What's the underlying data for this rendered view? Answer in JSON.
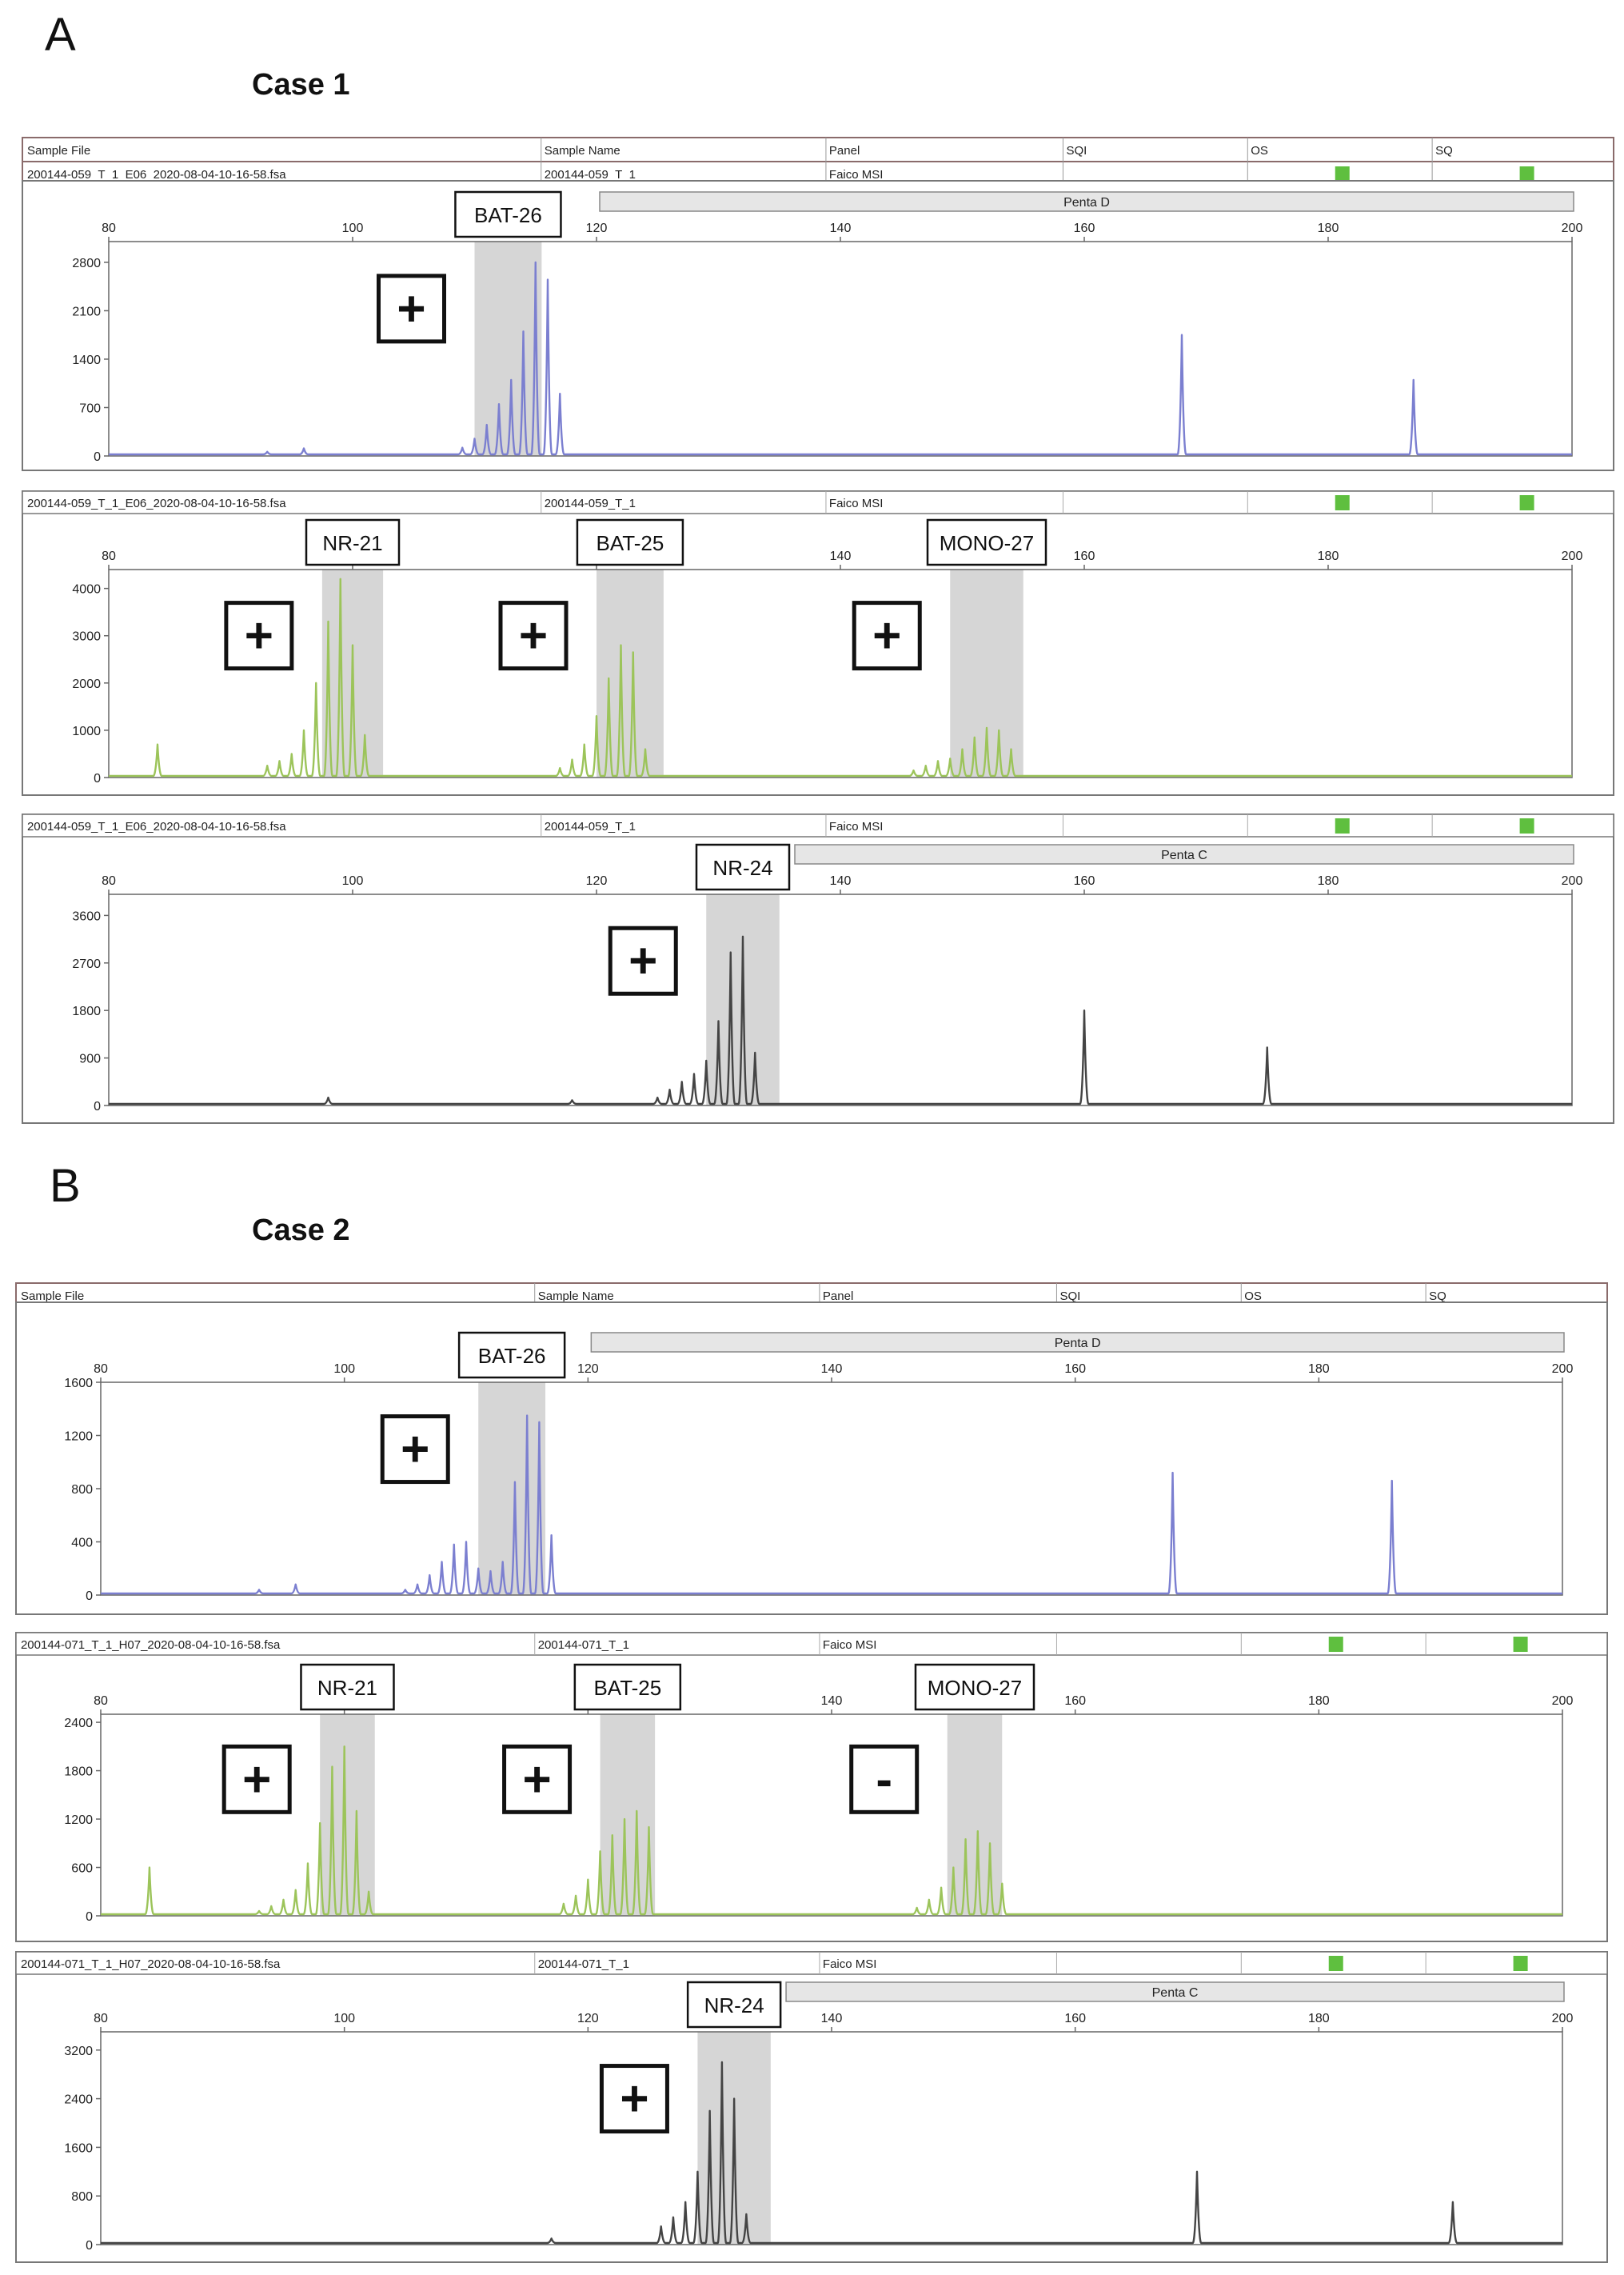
{
  "figure": {
    "panels": [
      {
        "letter": "A",
        "case_title": "Case 1",
        "header_labels": [
          "Sample File",
          "Sample Name",
          "Panel",
          "SQI",
          "OS",
          "SQ"
        ],
        "sample_file": "200144-059_T_1_E06_2020-08-04-10-16-58.fsa",
        "sample_name": "200144-059_T_1",
        "panel_name": "Faico MSI"
      },
      {
        "letter": "B",
        "case_title": "Case 2",
        "header_labels": [
          "Sample File",
          "Sample Name",
          "Panel",
          "SQI",
          "OS",
          "SQ"
        ],
        "sample_file": "200144-071_T_1_H07_2020-08-04-10-16-58.fsa",
        "sample_name": "200144-071_T_1",
        "panel_name": "Faico MSI"
      }
    ]
  },
  "colors": {
    "blue_channel": "#7b7fd0",
    "green_channel": "#9cc45a",
    "black_channel": "#444444",
    "highlight": "#cfcfcf",
    "quality_flag": "#5fbf3f"
  },
  "chart_data": [
    {
      "type": "line",
      "case": "Case 1",
      "channel": "blue",
      "x_ticks": [
        80,
        100,
        120,
        140,
        160,
        180,
        200
      ],
      "y_ticks": [
        0,
        700,
        1400,
        2100,
        2800
      ],
      "xlim": [
        80,
        200
      ],
      "ylim": [
        0,
        3100
      ],
      "bins": [
        {
          "label": "Penta D",
          "from": 120,
          "to": 200
        }
      ],
      "markers": [
        {
          "name": "BAT-26",
          "from": 110,
          "to": 115.5,
          "result": "+"
        }
      ],
      "peaks": [
        [
          93,
          60
        ],
        [
          96,
          110
        ],
        [
          109,
          120
        ],
        [
          110,
          250
        ],
        [
          111,
          450
        ],
        [
          112,
          750
        ],
        [
          113,
          1100
        ],
        [
          114,
          1800
        ],
        [
          115,
          2800
        ],
        [
          116,
          2550
        ],
        [
          117,
          900
        ],
        [
          168,
          1750
        ],
        [
          187,
          1100
        ]
      ]
    },
    {
      "type": "line",
      "case": "Case 1",
      "channel": "green",
      "x_ticks": [
        80,
        100,
        120,
        140,
        160,
        180,
        200
      ],
      "y_ticks": [
        0,
        1000,
        2000,
        3000,
        4000
      ],
      "xlim": [
        80,
        200
      ],
      "ylim": [
        0,
        4400
      ],
      "markers": [
        {
          "name": "NR-21",
          "from": 97.5,
          "to": 102.5,
          "result": "+"
        },
        {
          "name": "BAT-25",
          "from": 120,
          "to": 125.5,
          "result": "+"
        },
        {
          "name": "MONO-27",
          "from": 149,
          "to": 155,
          "result": "+"
        }
      ],
      "peaks": [
        [
          84,
          700
        ],
        [
          93,
          250
        ],
        [
          94,
          350
        ],
        [
          95,
          500
        ],
        [
          96,
          1000
        ],
        [
          97,
          2000
        ],
        [
          98,
          3300
        ],
        [
          99,
          4200
        ],
        [
          100,
          2800
        ],
        [
          101,
          900
        ],
        [
          117,
          200
        ],
        [
          118,
          380
        ],
        [
          119,
          700
        ],
        [
          120,
          1300
        ],
        [
          121,
          2100
        ],
        [
          122,
          2800
        ],
        [
          123,
          2650
        ],
        [
          124,
          600
        ],
        [
          146,
          150
        ],
        [
          147,
          250
        ],
        [
          148,
          350
        ],
        [
          149,
          400
        ],
        [
          150,
          600
        ],
        [
          151,
          850
        ],
        [
          152,
          1050
        ],
        [
          153,
          1000
        ],
        [
          154,
          600
        ]
      ]
    },
    {
      "type": "line",
      "case": "Case 1",
      "channel": "black",
      "x_ticks": [
        80,
        100,
        120,
        140,
        160,
        180,
        200
      ],
      "y_ticks": [
        0,
        900,
        1800,
        2700,
        3600
      ],
      "xlim": [
        80,
        200
      ],
      "ylim": [
        0,
        4000
      ],
      "bins": [
        {
          "label": "Penta C",
          "from": 136,
          "to": 200
        }
      ],
      "markers": [
        {
          "name": "NR-24",
          "from": 129,
          "to": 135,
          "result": "+"
        }
      ],
      "peaks": [
        [
          98,
          150
        ],
        [
          118,
          100
        ],
        [
          125,
          150
        ],
        [
          126,
          300
        ],
        [
          127,
          450
        ],
        [
          128,
          600
        ],
        [
          129,
          850
        ],
        [
          130,
          1600
        ],
        [
          131,
          2900
        ],
        [
          132,
          3200
        ],
        [
          133,
          1000
        ],
        [
          160,
          1800
        ],
        [
          175,
          1100
        ]
      ]
    },
    {
      "type": "line",
      "case": "Case 2",
      "channel": "blue",
      "x_ticks": [
        80,
        100,
        120,
        140,
        160,
        180,
        200
      ],
      "y_ticks": [
        0,
        400,
        800,
        1200,
        1600
      ],
      "xlim": [
        80,
        200
      ],
      "ylim": [
        0,
        1600
      ],
      "bins": [
        {
          "label": "Penta D",
          "from": 120,
          "to": 200
        }
      ],
      "markers": [
        {
          "name": "BAT-26",
          "from": 111,
          "to": 116.5,
          "result": "+"
        }
      ],
      "peaks": [
        [
          93,
          40
        ],
        [
          96,
          80
        ],
        [
          105,
          40
        ],
        [
          106,
          80
        ],
        [
          107,
          150
        ],
        [
          108,
          250
        ],
        [
          109,
          380
        ],
        [
          110,
          400
        ],
        [
          111,
          200
        ],
        [
          112,
          180
        ],
        [
          113,
          250
        ],
        [
          114,
          850
        ],
        [
          115,
          1350
        ],
        [
          116,
          1300
        ],
        [
          117,
          450
        ],
        [
          168,
          920
        ],
        [
          186,
          860
        ]
      ]
    },
    {
      "type": "line",
      "case": "Case 2",
      "channel": "green",
      "x_ticks": [
        80,
        100,
        120,
        140,
        160,
        180,
        200
      ],
      "y_ticks": [
        0,
        600,
        1200,
        1800,
        2400
      ],
      "xlim": [
        80,
        200
      ],
      "ylim": [
        0,
        2500
      ],
      "markers": [
        {
          "name": "NR-21",
          "from": 98,
          "to": 102.5,
          "result": "+"
        },
        {
          "name": "BAT-25",
          "from": 121,
          "to": 125.5,
          "result": "+"
        },
        {
          "name": "MONO-27",
          "from": 149.5,
          "to": 154,
          "result": "-"
        }
      ],
      "peaks": [
        [
          84,
          600
        ],
        [
          93,
          60
        ],
        [
          94,
          120
        ],
        [
          95,
          200
        ],
        [
          96,
          320
        ],
        [
          97,
          650
        ],
        [
          98,
          1150
        ],
        [
          99,
          1850
        ],
        [
          100,
          2100
        ],
        [
          101,
          1300
        ],
        [
          102,
          300
        ],
        [
          118,
          150
        ],
        [
          119,
          250
        ],
        [
          120,
          450
        ],
        [
          121,
          800
        ],
        [
          122,
          1000
        ],
        [
          123,
          1200
        ],
        [
          124,
          1300
        ],
        [
          125,
          1100
        ],
        [
          147,
          100
        ],
        [
          148,
          200
        ],
        [
          149,
          350
        ],
        [
          150,
          600
        ],
        [
          151,
          950
        ],
        [
          152,
          1050
        ],
        [
          153,
          900
        ],
        [
          154,
          400
        ]
      ]
    },
    {
      "type": "line",
      "case": "Case 2",
      "channel": "black",
      "x_ticks": [
        80,
        100,
        120,
        140,
        160,
        180,
        200
      ],
      "y_ticks": [
        0,
        800,
        1600,
        2400,
        3200
      ],
      "xlim": [
        80,
        200
      ],
      "ylim": [
        0,
        3500
      ],
      "bins": [
        {
          "label": "Penta C",
          "from": 136,
          "to": 200
        }
      ],
      "markers": [
        {
          "name": "NR-24",
          "from": 129,
          "to": 135,
          "result": "+"
        }
      ],
      "peaks": [
        [
          117,
          100
        ],
        [
          126,
          300
        ],
        [
          127,
          450
        ],
        [
          128,
          700
        ],
        [
          129,
          1200
        ],
        [
          130,
          2200
        ],
        [
          131,
          3000
        ],
        [
          132,
          2400
        ],
        [
          133,
          500
        ],
        [
          170,
          1200
        ],
        [
          191,
          700
        ]
      ]
    }
  ]
}
